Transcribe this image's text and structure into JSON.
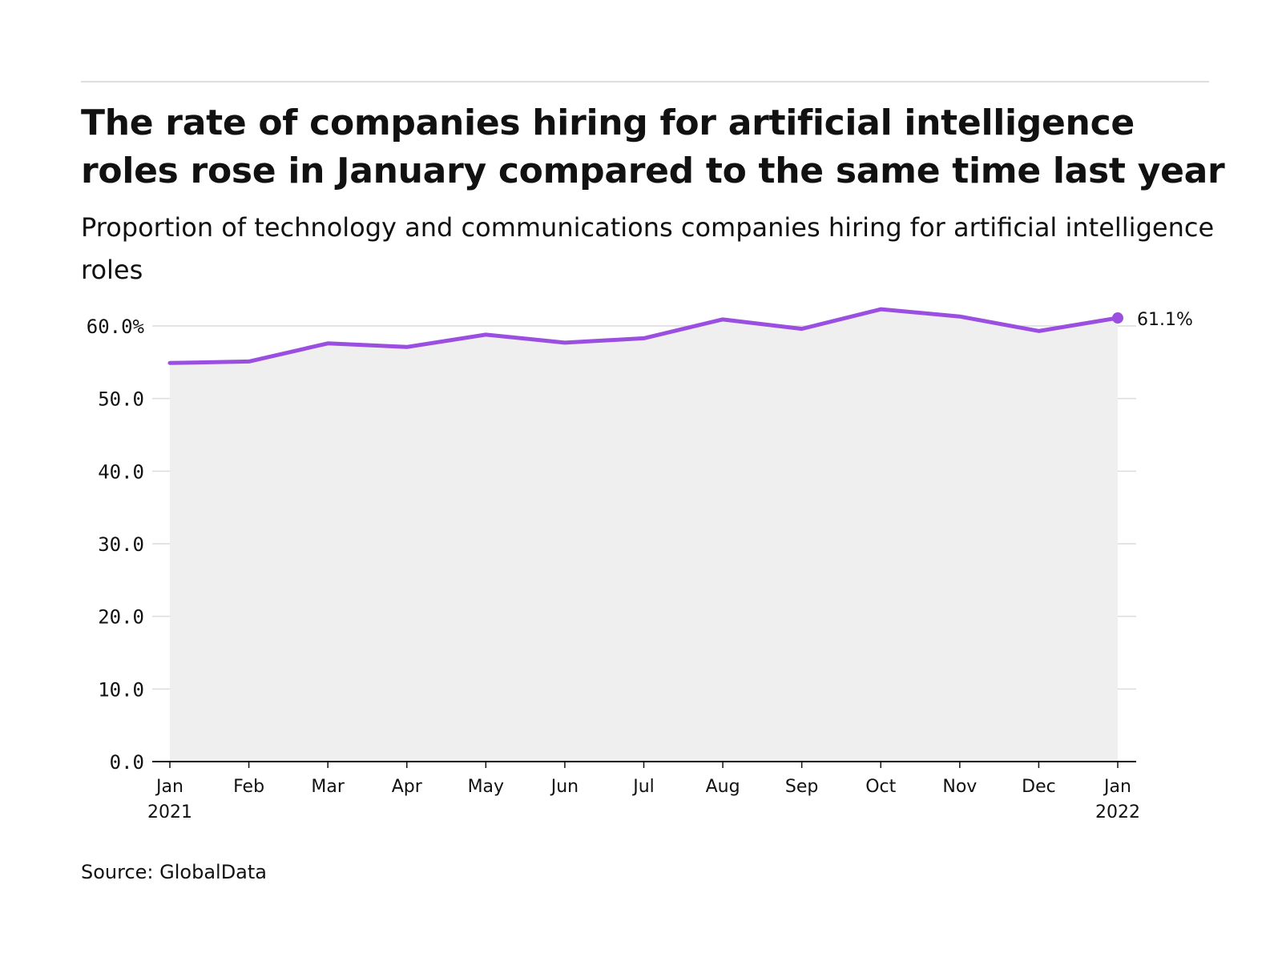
{
  "header": {
    "title": "The rate of companies hiring for artificial intelligence roles rose in January compared to the same time last year",
    "subtitle": "Proportion of technology and communications companies hiring for artificial intelligence roles"
  },
  "footer": {
    "source": "Source: GlobalData"
  },
  "colors": {
    "line": "#9b4fe0",
    "area": "#efefef",
    "grid": "#dcdcdc",
    "axis": "#111111",
    "text": "#111111"
  },
  "chart_data": {
    "type": "line",
    "title": "",
    "xlabel": "",
    "ylabel": "",
    "grid": true,
    "area_fill": true,
    "ylim": [
      0,
      60
    ],
    "y_ticks": [
      {
        "value": 0,
        "label": "0.0"
      },
      {
        "value": 10,
        "label": "10.0"
      },
      {
        "value": 20,
        "label": "20.0"
      },
      {
        "value": 30,
        "label": "30.0"
      },
      {
        "value": 40,
        "label": "40.0"
      },
      {
        "value": 50,
        "label": "50.0"
      },
      {
        "value": 60,
        "label": "60.0%"
      }
    ],
    "x": [
      {
        "month": "Jan",
        "year": "2021"
      },
      {
        "month": "Feb",
        "year": ""
      },
      {
        "month": "Mar",
        "year": ""
      },
      {
        "month": "Apr",
        "year": ""
      },
      {
        "month": "May",
        "year": ""
      },
      {
        "month": "Jun",
        "year": ""
      },
      {
        "month": "Jul",
        "year": ""
      },
      {
        "month": "Aug",
        "year": ""
      },
      {
        "month": "Sep",
        "year": ""
      },
      {
        "month": "Oct",
        "year": ""
      },
      {
        "month": "Nov",
        "year": ""
      },
      {
        "month": "Dec",
        "year": ""
      },
      {
        "month": "Jan",
        "year": "2022"
      }
    ],
    "series": [
      {
        "values": [
          54.9,
          55.1,
          57.6,
          57.1,
          58.8,
          57.7,
          58.3,
          60.9,
          59.6,
          62.3,
          61.3,
          59.3,
          61.1
        ]
      }
    ],
    "end_label": "61.1%"
  }
}
